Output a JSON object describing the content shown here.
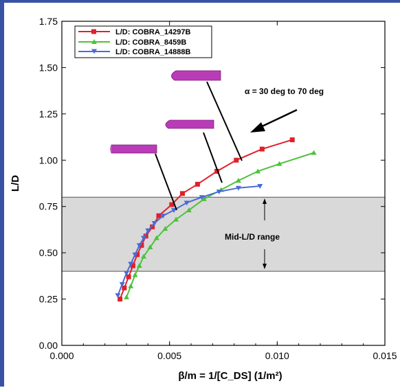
{
  "colors": {
    "frame": "#3a52a3",
    "series_red": "#e0202a",
    "series_green": "#4cc23a",
    "series_blue": "#4a6bd6",
    "band": "#d9d9d9",
    "vehicle": "#b93bb8"
  },
  "chart_data": {
    "type": "line",
    "title": "",
    "xlabel": "β/m = 1/[C_DS] (1/m²)",
    "ylabel": "L/D",
    "xlim": [
      0,
      0.015
    ],
    "ylim": [
      0,
      1.75
    ],
    "xticks": [
      "0.000",
      "0.005",
      "0.010",
      "0.015"
    ],
    "yticks": [
      "0.00",
      "0.25",
      "0.50",
      "0.75",
      "1.00",
      "1.25",
      "1.50",
      "1.75"
    ],
    "legend_position": "top-left",
    "series": [
      {
        "name": "L/D: COBRA_14297B",
        "marker": "square",
        "color": "#e0202a",
        "x": [
          0.0027,
          0.0029,
          0.0031,
          0.0033,
          0.0035,
          0.0037,
          0.0039,
          0.0042,
          0.0045,
          0.0051,
          0.0056,
          0.0063,
          0.0072,
          0.0081,
          0.0093,
          0.0107
        ],
        "y": [
          0.25,
          0.31,
          0.37,
          0.43,
          0.49,
          0.54,
          0.59,
          0.64,
          0.7,
          0.76,
          0.82,
          0.87,
          0.94,
          1.0,
          1.06,
          1.11
        ]
      },
      {
        "name": "L/D: COBRA_8459B",
        "marker": "triangle-up",
        "color": "#4cc23a",
        "x": [
          0.003,
          0.0032,
          0.0034,
          0.0036,
          0.0038,
          0.0041,
          0.0044,
          0.0048,
          0.0053,
          0.0059,
          0.0066,
          0.0074,
          0.0082,
          0.0091,
          0.0101,
          0.0117
        ],
        "y": [
          0.26,
          0.32,
          0.38,
          0.43,
          0.48,
          0.53,
          0.58,
          0.63,
          0.68,
          0.73,
          0.79,
          0.84,
          0.89,
          0.94,
          0.98,
          1.04
        ]
      },
      {
        "name": "L/D: COBRA_14888B",
        "marker": "triangle-down",
        "color": "#4a6bd6",
        "x": [
          0.0026,
          0.0028,
          0.003,
          0.0032,
          0.0034,
          0.0036,
          0.0038,
          0.004,
          0.0043,
          0.0047,
          0.0052,
          0.0058,
          0.0065,
          0.0073,
          0.0082,
          0.0092
        ],
        "y": [
          0.27,
          0.33,
          0.39,
          0.44,
          0.49,
          0.54,
          0.58,
          0.62,
          0.66,
          0.7,
          0.73,
          0.77,
          0.8,
          0.83,
          0.85,
          0.86
        ]
      }
    ],
    "band": {
      "label": "Mid-L/D range",
      "y_range": [
        0.4,
        0.8
      ]
    },
    "annotations": [
      {
        "text": "α = 30 deg to 70 deg"
      }
    ]
  }
}
